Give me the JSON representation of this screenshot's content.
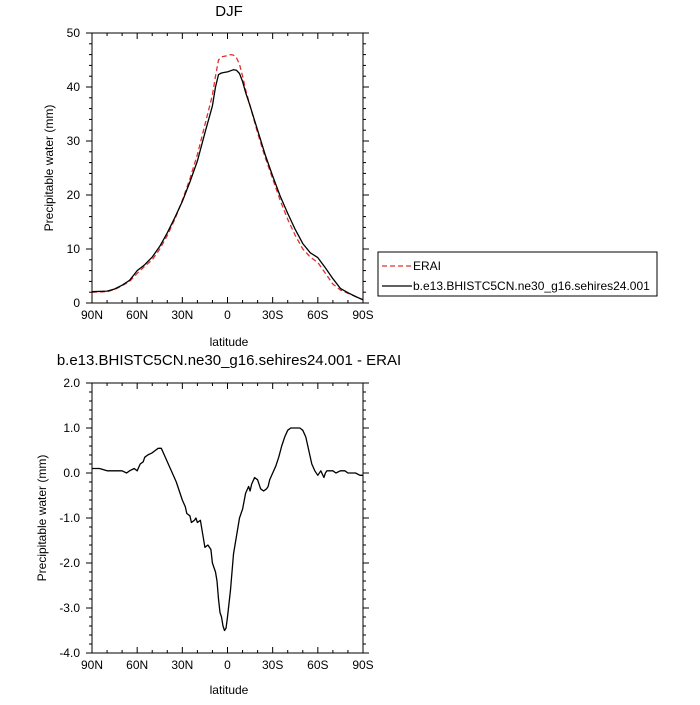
{
  "chart_data": [
    {
      "type": "line",
      "title": "DJF",
      "xlabel": "latitude",
      "ylabel": "Precipitable water (mm)",
      "xlim": [
        90,
        -90
      ],
      "ylim": [
        0,
        50
      ],
      "x_ticks": [
        90,
        60,
        30,
        0,
        -30,
        -60,
        -90
      ],
      "x_tick_labels": [
        "90N",
        "60N",
        "30N",
        "0",
        "30S",
        "60S",
        "90S"
      ],
      "y_ticks": [
        0,
        10,
        20,
        30,
        40,
        50
      ],
      "y_tick_labels": [
        "0",
        "10",
        "20",
        "30",
        "40",
        "50"
      ],
      "legend_position": "right-outside",
      "series": [
        {
          "name": "ERAI",
          "color": "#e0302f",
          "dash": "dashed",
          "x": [
            90,
            80,
            75,
            70,
            65,
            60,
            55,
            50,
            45,
            40,
            35,
            30,
            25,
            20,
            15,
            10,
            8,
            6,
            4,
            2,
            0,
            -2,
            -4,
            -6,
            -8,
            -10,
            -12,
            -15,
            -20,
            -25,
            -30,
            -35,
            -40,
            -45,
            -50,
            -55,
            -60,
            -65,
            -70,
            -75,
            -80,
            -85,
            -90
          ],
          "y": [
            2.0,
            2.1,
            2.5,
            3.2,
            4.0,
            5.5,
            6.8,
            8.0,
            10.0,
            12.5,
            15.5,
            19.0,
            23.0,
            27.5,
            33.0,
            38.5,
            42.0,
            45.0,
            45.6,
            45.7,
            45.8,
            46.0,
            45.9,
            45.4,
            44.2,
            42.0,
            39.5,
            36.5,
            31.5,
            27.0,
            23.0,
            19.0,
            15.5,
            12.5,
            10.0,
            8.5,
            7.5,
            5.5,
            3.5,
            2.4,
            1.8,
            1.2,
            0.6
          ]
        },
        {
          "name": "b.e13.BHISTC5CN.ne30_g16.sehires24.001",
          "color": "#000000",
          "dash": "solid",
          "x": [
            90,
            80,
            75,
            70,
            65,
            60,
            55,
            50,
            45,
            40,
            35,
            30,
            25,
            20,
            15,
            10,
            8,
            6,
            4,
            2,
            0,
            -2,
            -4,
            -6,
            -8,
            -10,
            -12,
            -15,
            -20,
            -25,
            -30,
            -35,
            -40,
            -45,
            -50,
            -55,
            -60,
            -65,
            -70,
            -75,
            -80,
            -85,
            -90
          ],
          "y": [
            2.1,
            2.2,
            2.6,
            3.3,
            4.2,
            6.0,
            7.1,
            8.5,
            10.5,
            13.0,
            15.8,
            18.8,
            22.4,
            26.3,
            31.5,
            36.5,
            40.0,
            42.3,
            42.6,
            42.7,
            42.8,
            43.0,
            43.2,
            43.1,
            42.5,
            41.0,
            39.0,
            36.5,
            32.0,
            27.5,
            23.5,
            19.8,
            16.6,
            13.6,
            11.0,
            9.3,
            8.4,
            6.5,
            4.5,
            2.7,
            1.9,
            1.2,
            0.6
          ]
        }
      ]
    },
    {
      "type": "line",
      "title": "b.e13.BHISTC5CN.ne30_g16.sehires24.001 - ERAI",
      "xlabel": "latitude",
      "ylabel": "Precipitable water (mm)",
      "xlim": [
        90,
        -90
      ],
      "ylim": [
        -4.0,
        2.0
      ],
      "x_ticks": [
        90,
        60,
        30,
        0,
        -30,
        -60,
        -90
      ],
      "x_tick_labels": [
        "90N",
        "60N",
        "30N",
        "0",
        "30S",
        "60S",
        "90S"
      ],
      "y_ticks": [
        -4,
        -3,
        -2,
        -1,
        0,
        1,
        2
      ],
      "y_tick_labels": [
        "-4.0",
        "-3.0",
        "-2.0",
        "-1.0",
        "0.0",
        "1.0",
        "2.0"
      ],
      "series": [
        {
          "name": "",
          "color": "#000000",
          "dash": "solid",
          "x": [
            90,
            85,
            80,
            75,
            70,
            67,
            65,
            62,
            60,
            58,
            56,
            55,
            53,
            50,
            48,
            46,
            44,
            42,
            40,
            38,
            36,
            34,
            32,
            30,
            28,
            27,
            25,
            24,
            22,
            21,
            20,
            18,
            16,
            15,
            13,
            11,
            10,
            8,
            7,
            6,
            5,
            4,
            3,
            2,
            1,
            0,
            -1,
            -2,
            -3,
            -4,
            -6,
            -8,
            -10,
            -12,
            -14,
            -15,
            -16,
            -18,
            -20,
            -22,
            -24,
            -26,
            -27,
            -28,
            -30,
            -32,
            -34,
            -36,
            -38,
            -40,
            -42,
            -44,
            -46,
            -48,
            -50,
            -52,
            -54,
            -56,
            -58,
            -60,
            -62,
            -64,
            -65,
            -66,
            -68,
            -70,
            -72,
            -75,
            -78,
            -80,
            -83,
            -85,
            -88,
            -90
          ],
          "y": [
            0.1,
            0.1,
            0.05,
            0.05,
            0.05,
            0.0,
            0.05,
            0.1,
            0.05,
            0.2,
            0.25,
            0.35,
            0.4,
            0.45,
            0.5,
            0.55,
            0.55,
            0.4,
            0.25,
            0.1,
            -0.05,
            -0.2,
            -0.4,
            -0.6,
            -0.75,
            -0.9,
            -0.95,
            -1.1,
            -1.05,
            -1.0,
            -1.1,
            -1.05,
            -1.45,
            -1.65,
            -1.6,
            -1.7,
            -2.0,
            -2.2,
            -2.4,
            -2.8,
            -3.1,
            -3.2,
            -3.4,
            -3.5,
            -3.45,
            -3.2,
            -2.9,
            -2.6,
            -2.2,
            -1.8,
            -1.4,
            -1.0,
            -0.8,
            -0.45,
            -0.3,
            -0.4,
            -0.25,
            -0.1,
            -0.15,
            -0.35,
            -0.4,
            -0.35,
            -0.3,
            -0.15,
            0.0,
            0.15,
            0.35,
            0.6,
            0.8,
            0.95,
            1.0,
            1.0,
            1.0,
            1.0,
            0.95,
            0.8,
            0.5,
            0.2,
            0.05,
            -0.05,
            0.05,
            -0.1,
            0.0,
            0.05,
            0.05,
            0.05,
            0.0,
            0.05,
            0.05,
            0.0,
            0.0,
            0.0,
            -0.05,
            -0.05
          ]
        }
      ]
    }
  ]
}
